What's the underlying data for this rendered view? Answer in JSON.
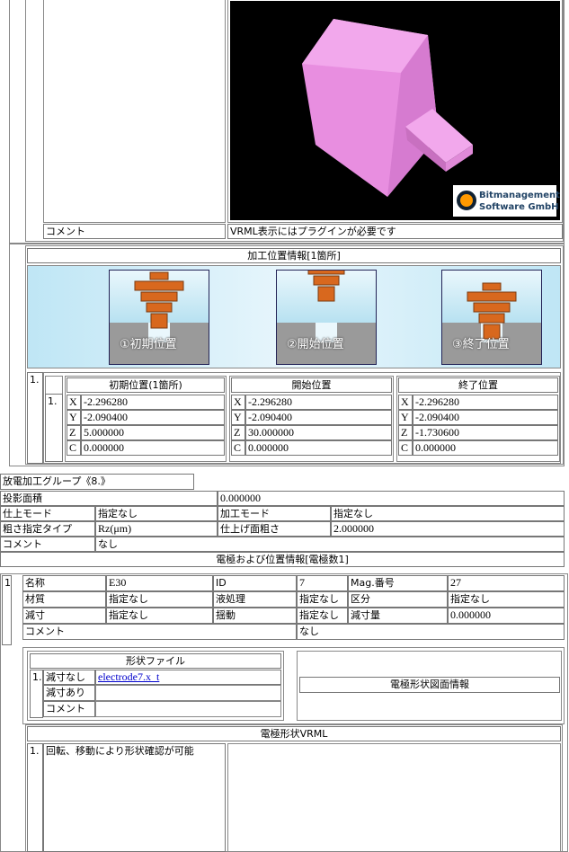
{
  "top_vrml": {
    "logo": [
      "Bitmanagement",
      "Software GmbH"
    ],
    "comment_label": "コメント",
    "comment_text": "VRML表示にはプラグインが必要です"
  },
  "machining": {
    "title": "加工位置情報[1箇所]",
    "steps": [
      "①初期位置",
      "②開始位置",
      "③終了位置"
    ],
    "row_no": "1.",
    "sub_no": "1.",
    "groups": [
      {
        "title": "初期位置(1箇所)",
        "rows": [
          [
            "X",
            "-2.296280"
          ],
          [
            "Y",
            "-2.090400"
          ],
          [
            "Z",
            "5.000000"
          ],
          [
            "C",
            "0.000000"
          ]
        ]
      },
      {
        "title": "開始位置",
        "rows": [
          [
            "X",
            "-2.296280"
          ],
          [
            "Y",
            "-2.090400"
          ],
          [
            "Z",
            "30.000000"
          ],
          [
            "C",
            "0.000000"
          ]
        ]
      },
      {
        "title": "終了位置",
        "rows": [
          [
            "X",
            "-2.296280"
          ],
          [
            "Y",
            "-2.090400"
          ],
          [
            "Z",
            "-1.730600"
          ],
          [
            "C",
            "0.000000"
          ]
        ]
      }
    ]
  },
  "group": {
    "title": "放電加工グループ《8.》",
    "rows": [
      [
        "投影面積",
        "0.000000"
      ],
      [
        "仕上モード",
        "指定なし",
        "加工モード",
        "指定なし"
      ],
      [
        "粗さ指定タイプ",
        "Rz(μm)",
        "仕上げ面粗さ",
        "2.000000"
      ],
      [
        "コメント",
        "なし"
      ]
    ],
    "electrode_header": "電極および位置情報[電極数1]",
    "electrode": {
      "no": "1.",
      "rows": [
        [
          "名称",
          "E30",
          "ID",
          "7",
          "Mag.番号",
          "27"
        ],
        [
          "材質",
          "指定なし",
          "液処理",
          "指定なし",
          "区分",
          "指定なし"
        ],
        [
          "減寸",
          "指定なし",
          "揺動",
          "指定なし",
          "減寸量",
          "0.000000"
        ],
        [
          "コメント",
          "なし"
        ]
      ],
      "shape_file": {
        "title": "形状ファイル",
        "no": "1.",
        "rows": [
          [
            "減寸なし",
            "electrode7.x_t"
          ],
          [
            "減寸あり"
          ],
          [
            "コメント"
          ]
        ]
      },
      "drawing_info": "電極形状図面情報",
      "vrml": {
        "title": "電極形状VRML",
        "no": "1.",
        "text": "回転、移動により形状確認が可能"
      }
    }
  }
}
